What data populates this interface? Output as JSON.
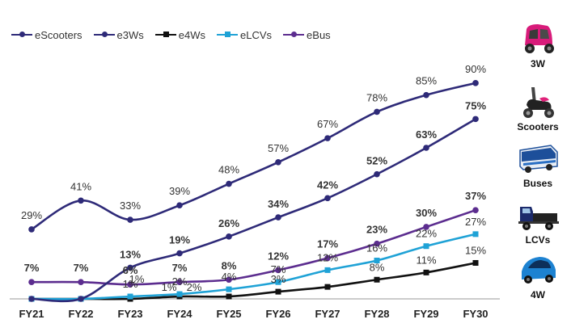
{
  "chart_data": {
    "type": "line",
    "title": "",
    "xlabel": "",
    "ylabel": "",
    "ylim": [
      0,
      95
    ],
    "categories": [
      "FY21",
      "FY22",
      "FY23",
      "FY24",
      "FY25",
      "FY26",
      "FY27",
      "FY28",
      "FY29",
      "FY30"
    ],
    "series": [
      {
        "name": "eScooters",
        "color": "#2e2a78",
        "marker": "circle",
        "values": [
          29,
          41,
          33,
          39,
          48,
          57,
          67,
          78,
          85,
          90
        ],
        "labels": [
          "29%",
          "41%",
          "33%",
          "39%",
          "48%",
          "57%",
          "67%",
          "78%",
          "85%",
          "90%"
        ]
      },
      {
        "name": "e3Ws",
        "color": "#2e2a78",
        "marker": "circle",
        "values": [
          0,
          0,
          13,
          19,
          26,
          34,
          42,
          52,
          63,
          75
        ],
        "labels": [
          "",
          "",
          "13%",
          "19%",
          "26%",
          "34%",
          "42%",
          "52%",
          "63%",
          "75%"
        ]
      },
      {
        "name": "e4Ws",
        "color": "#111111",
        "marker": "square",
        "values": [
          0,
          0,
          0,
          1,
          1,
          3,
          5,
          8,
          11,
          15
        ],
        "labels": [
          "",
          "",
          "",
          "",
          "",
          "3%",
          "",
          "8%",
          "11%",
          "15%"
        ]
      },
      {
        "name": "eLCVs",
        "color": "#1fa2d6",
        "marker": "square",
        "values": [
          0,
          0,
          1,
          2,
          4,
          7,
          12,
          16,
          22,
          27
        ],
        "labels": [
          "",
          "",
          "1%",
          "2%",
          "4%",
          "7%",
          "12%",
          "16%",
          "22%",
          "27%"
        ]
      },
      {
        "name": "eBus",
        "color": "#5c2d8f",
        "marker": "circle",
        "values": [
          7,
          7,
          6,
          7,
          8,
          12,
          17,
          23,
          30,
          37
        ],
        "labels": [
          "7%",
          "7%",
          "6%",
          "7%",
          "8%",
          "12%",
          "17%",
          "23%",
          "30%",
          "37%"
        ]
      }
    ],
    "extra_labels": [
      "1%",
      "1%",
      "2%"
    ]
  },
  "side_panel": [
    {
      "label": "3W",
      "icon": "three-wheeler-icon"
    },
    {
      "label": "Scooters",
      "icon": "scooter-icon"
    },
    {
      "label": "Buses",
      "icon": "bus-icon"
    },
    {
      "label": "LCVs",
      "icon": "truck-icon"
    },
    {
      "label": "4W",
      "icon": "car-icon"
    }
  ]
}
